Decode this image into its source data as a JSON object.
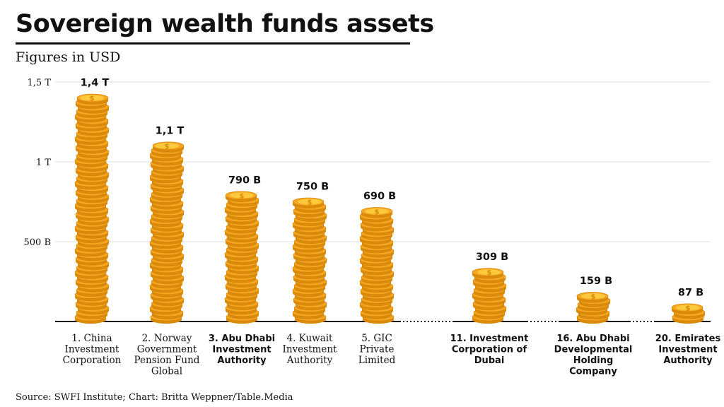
{
  "title": "Sovereign wealth funds assets",
  "subtitle": "Figures in USD",
  "source": "Source: SWFI Institute; Chart: Britta Weppner/Table.Media",
  "colors": {
    "coin": "#f5a623",
    "coin_dark": "#d98a0b",
    "coin_light": "#ffc93c",
    "grid": "#dddddd",
    "axis": "#111111"
  },
  "chart_data": {
    "type": "bar",
    "title": "Sovereign wealth funds assets",
    "subtitle": "Figures in USD",
    "ylim": [
      0,
      1500000000000
    ],
    "yticks": [
      {
        "value": 500000000000,
        "label": "500 B"
      },
      {
        "value": 1000000000000,
        "label": "1 T"
      },
      {
        "value": 1500000000000,
        "label": "1,5 T"
      }
    ],
    "grid": true,
    "categories": [
      {
        "lines": [
          "1. China",
          "Investment",
          "Corporation"
        ],
        "highlight": false
      },
      {
        "lines": [
          "2. Norway",
          "Government",
          "Pension Fund",
          "Global"
        ],
        "highlight": false
      },
      {
        "lines": [
          "3. Abu Dhabi",
          "Investment",
          "Authority"
        ],
        "highlight": true
      },
      {
        "lines": [
          "4. Kuwait",
          "Investment",
          "Authority"
        ],
        "highlight": false
      },
      {
        "lines": [
          "5. GIC",
          "Private",
          "Limited"
        ],
        "highlight": false
      },
      {
        "lines": [
          "11. Investment",
          "Corporation of",
          "Dubai"
        ],
        "highlight": true
      },
      {
        "lines": [
          "16. Abu Dhabi",
          "Developmental",
          "Holding",
          "Company"
        ],
        "highlight": true
      },
      {
        "lines": [
          "20. Emirates",
          "Investment",
          "Authority"
        ],
        "highlight": true
      }
    ],
    "values": [
      1400000000000,
      1100000000000,
      790000000000,
      750000000000,
      690000000000,
      309000000000,
      159000000000,
      87000000000
    ],
    "value_labels": [
      "1,4 T",
      "1,1 T",
      "790 B",
      "750 B",
      "690 B",
      "309 B",
      "159 B",
      "87 B"
    ],
    "coin_symbol": "$"
  }
}
